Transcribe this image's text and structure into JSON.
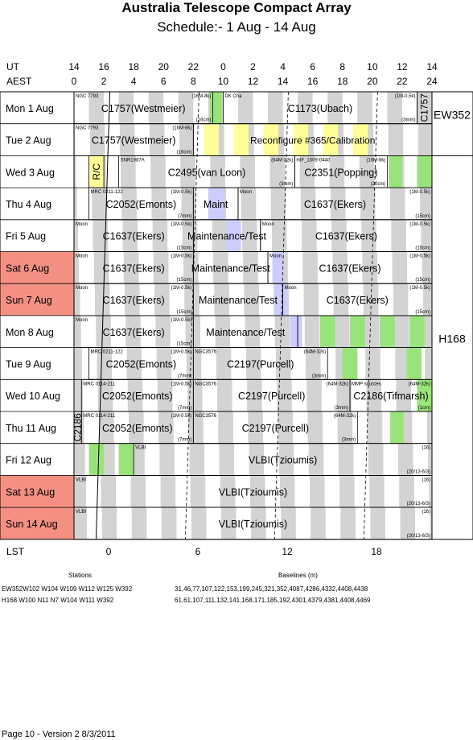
{
  "title": "Australia Telescope Compact Array",
  "subtitle": "Schedule:- 1  Aug - 14 Aug",
  "axes": {
    "ut_label": "UT",
    "aest_label": "AEST",
    "lst_label": "LST",
    "ut_ticks": [
      "14",
      "16",
      "18",
      "20",
      "22",
      "0",
      "2",
      "4",
      "6",
      "8",
      "10",
      "12",
      "14"
    ],
    "aest_ticks": [
      "0",
      "2",
      "4",
      "6",
      "8",
      "10",
      "12",
      "14",
      "16",
      "18",
      "20",
      "22",
      "24"
    ],
    "lst_ticks": [
      "0",
      "6",
      "12",
      "18"
    ]
  },
  "colors": {
    "weekend": "#f49083",
    "green": "#99e37b",
    "yellow": "#ffff99",
    "purple": "#ccccff",
    "grey": "#d3d3d3"
  },
  "configs": [
    {
      "label": "EW352",
      "days": [
        1
      ]
    },
    {
      "label": "H168",
      "days": [
        8
      ]
    }
  ],
  "days": [
    {
      "label": "Mon   1  Aug",
      "weekend": false
    },
    {
      "label": "Tue   2  Aug",
      "weekend": false
    },
    {
      "label": "Wed   3  Aug",
      "weekend": false
    },
    {
      "label": "Thu   4  Aug",
      "weekend": false
    },
    {
      "label": "Fri    5  Aug",
      "weekend": false
    },
    {
      "label": "Sat    6  Aug",
      "weekend": true
    },
    {
      "label": "Sun   7  Aug",
      "weekend": true
    },
    {
      "label": "Mon   8  Aug",
      "weekend": false
    },
    {
      "label": "Tue   9  Aug",
      "weekend": false
    },
    {
      "label": "Wed  10 Aug",
      "weekend": false
    },
    {
      "label": "Thu   11 Aug",
      "weekend": false
    },
    {
      "label": "Fri    12 Aug",
      "weekend": false
    },
    {
      "label": "Sat    13 Aug",
      "weekend": true
    },
    {
      "label": "Sun   14 Aug",
      "weekend": true
    }
  ],
  "observations": [
    {
      "day": 0,
      "start": 0,
      "end": 9.3,
      "label": "C1757(Westmeier)",
      "source": "NGC 7793",
      "band": "(16M-8k)",
      "array": "(16cm)"
    },
    {
      "day": 0,
      "start": 10,
      "end": 23,
      "label": "C1173(Ubach)",
      "source": "DK Cha",
      "band": "(1M-0.5k)",
      "array": "(3mm)"
    },
    {
      "day": 0,
      "start": 23,
      "end": 24,
      "label": "C1757",
      "source": "",
      "band": "",
      "array": "",
      "vertical": true
    },
    {
      "day": 1,
      "start": 0,
      "end": 8,
      "label": "C1757(Westmeier)",
      "source": "NGC 7793",
      "band": "(16M-8k)",
      "array": "(16cm)"
    },
    {
      "day": 1,
      "start": 8,
      "end": 24,
      "label": "Reconfigure #365/Calibration",
      "source": "",
      "band": "",
      "array": ""
    },
    {
      "day": 2,
      "start": 1,
      "end": 2,
      "label": "R/C",
      "source": "",
      "band": "",
      "array": "",
      "vertical": true
    },
    {
      "day": 2,
      "start": 3,
      "end": 14.8,
      "label": "C2495(van Loon)",
      "source": "SNR1987A",
      "band": "(64M-32k)",
      "array": "(3mm)"
    },
    {
      "day": 2,
      "start": 14.8,
      "end": 21,
      "label": "C2351(Popping)",
      "source": "HIF_1509-0440",
      "band": "(16M-8k)",
      "array": "(20cm)"
    },
    {
      "day": 3,
      "start": 1,
      "end": 8,
      "label": "C2052(Emonts)",
      "source": "MRC 0211-122",
      "band": "(1M-0.5k)",
      "array": "(7mm)"
    },
    {
      "day": 3,
      "start": 8,
      "end": 11,
      "label": "Maint",
      "source": "",
      "band": "",
      "array": ""
    },
    {
      "day": 3,
      "start": 11,
      "end": 24,
      "label": "C1637(Ekers)",
      "source": "Moon",
      "band": "(1M-0.5k)",
      "array": "(15cm)"
    },
    {
      "day": 4,
      "start": 0,
      "end": 8,
      "label": "C1637(Ekers)",
      "source": "Moon",
      "band": "(1M-0.5k)",
      "array": "(15cm)"
    },
    {
      "day": 4,
      "start": 8,
      "end": 12.5,
      "label": "Maintenance/Test",
      "source": "",
      "band": "",
      "array": ""
    },
    {
      "day": 4,
      "start": 12.5,
      "end": 24,
      "label": "C1637(Ekers)",
      "source": "Moon",
      "band": "(1M-0.5k)",
      "array": "(15cm)"
    },
    {
      "day": 5,
      "start": 0,
      "end": 8,
      "label": "C1637(Ekers)",
      "source": "Moon",
      "band": "(1M-0.5k)",
      "array": "(15cm)"
    },
    {
      "day": 5,
      "start": 8,
      "end": 13,
      "label": "Maintenance/Test",
      "source": "",
      "band": "",
      "array": ""
    },
    {
      "day": 5,
      "start": 13,
      "end": 24,
      "label": "C1637(Ekers)",
      "source": "Moon",
      "band": "(1M-0.5k)",
      "array": "(15cm)"
    },
    {
      "day": 6,
      "start": 0,
      "end": 8,
      "label": "C1637(Ekers)",
      "source": "Moon",
      "band": "(1M-0.5k)",
      "array": "(15cm)"
    },
    {
      "day": 6,
      "start": 8,
      "end": 14,
      "label": "Maintenance/Test",
      "source": "",
      "band": "",
      "array": ""
    },
    {
      "day": 6,
      "start": 14,
      "end": 24,
      "label": "C1637(Ekers)",
      "source": "Moon",
      "band": "(1M-0.5k)",
      "array": "(15cm)"
    },
    {
      "day": 7,
      "start": 0,
      "end": 8,
      "label": "C1637(Ekers)",
      "source": "Moon",
      "band": "(1M-0.5k)",
      "array": "(15cm)"
    },
    {
      "day": 7,
      "start": 8,
      "end": 15,
      "label": "Maintenance/Test",
      "source": "",
      "band": "",
      "array": ""
    },
    {
      "day": 7,
      "start": 15,
      "end": 24,
      "label": "",
      "source": "",
      "band": "",
      "array": ""
    },
    {
      "day": 8,
      "start": 1,
      "end": 8,
      "label": "C2052(Emonts)",
      "source": "MRC 0211-122",
      "band": "(1M-0.5k)",
      "array": "(7mm)"
    },
    {
      "day": 8,
      "start": 8,
      "end": 17,
      "label": "C2197(Purcell)",
      "source": "NGC3576",
      "band": "(64M-32k)",
      "array": "(3mm)"
    },
    {
      "day": 9,
      "start": 0.5,
      "end": 8,
      "label": "C2052(Emonts)",
      "source": "MRC 0114-211",
      "band": "(1M-0.5k)",
      "array": "(7mm)"
    },
    {
      "day": 9,
      "start": 8,
      "end": 18.5,
      "label": "C2197(Purcell)",
      "source": "NGC3576",
      "band": "(64M-32k)",
      "array": "(3mm)"
    },
    {
      "day": 9,
      "start": 18.5,
      "end": 24,
      "label": "C2186(Tifmarsh)",
      "source": "MMP sources",
      "band": "(64M-32k)",
      "array": "(1cm)"
    },
    {
      "day": 10,
      "start": 0,
      "end": 0.5,
      "label": "C2186",
      "source": "",
      "band": "",
      "array": "",
      "vertical": true
    },
    {
      "day": 10,
      "start": 0.5,
      "end": 8,
      "label": "C2052(Emonts)",
      "source": "MRC 0114-211",
      "band": "(1M-0.5k)",
      "array": "(7mm)"
    },
    {
      "day": 10,
      "start": 8,
      "end": 19,
      "label": "C2197(Purcell)",
      "source": "NGC3576",
      "band": "(64M-32k)",
      "array": "(3mm)"
    },
    {
      "day": 11,
      "start": 4,
      "end": 24,
      "label": "VLBI(Tzioumis)",
      "source": "VLBI",
      "band": "(16)",
      "array": "(20/13-6/3)"
    },
    {
      "day": 12,
      "start": 0,
      "end": 24,
      "label": "VLBI(Tzioumis)",
      "source": "VLBI",
      "band": "(16)",
      "array": "(20/13-6/3)"
    },
    {
      "day": 13,
      "start": 0,
      "end": 24,
      "label": "VLBI(Tzioumis)",
      "source": "VLBI",
      "band": "(16)",
      "array": "(20/13-6/3)"
    }
  ],
  "footer": {
    "stations_header": "Stations",
    "baselines_header": "Baselines (m)",
    "rows": [
      {
        "stations": "EW352W102 W104 W109 W112 W125 W392",
        "baselines": "31,46,77,107,122,153,199,245,321,352,4087,4286,4332,4408,4438"
      },
      {
        "stations": "H168  W100 N11 N7 W104 W111 W392",
        "baselines": "61,61,107,111,132,141,168,171,185,192,4301,4379,4381,4408,4469"
      }
    ],
    "page": "Page 10 - Version 2  8/3/2011"
  }
}
